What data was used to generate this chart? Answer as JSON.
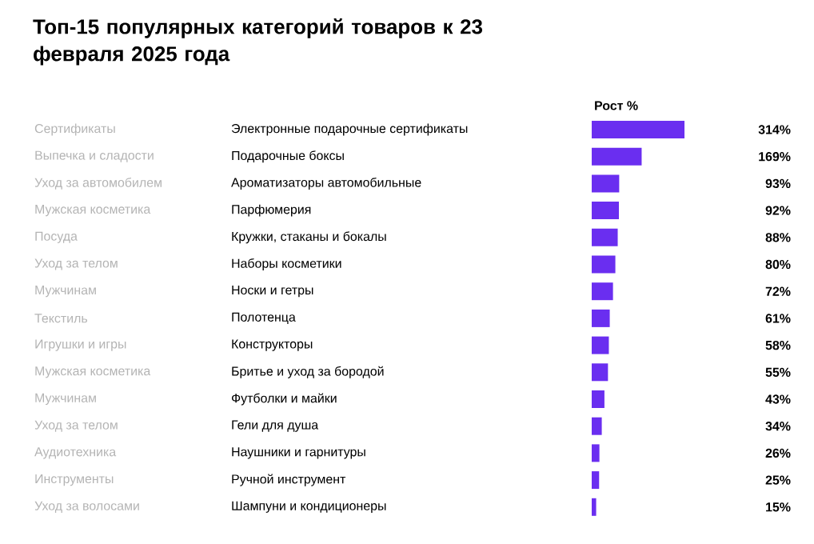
{
  "chart_data": {
    "type": "bar",
    "orientation": "horizontal",
    "title": "Топ-15 популярных категорий товаров к 23 февраля 2025 года",
    "xlabel": "Рост %",
    "categories": [
      "Электронные подарочные сертификаты",
      "Подарочные боксы",
      "Ароматизаторы автомобильные",
      "Парфюмерия",
      "Кружки, стаканы и бокалы",
      "Наборы косметики",
      "Носки и гетры",
      "Полотенца",
      "Конструкторы",
      "Бритье и уход за бородой",
      "Футболки и майки",
      "Гели для душа",
      "Наушники и гарнитуры",
      "Ручной инструмент",
      "Шампуни и кондиционеры"
    ],
    "annotations": [
      "Сертификаты",
      "Выпечка и сладости",
      "Уход за автомобилем",
      "Мужская косметика",
      "Посуда",
      "Уход за телом",
      "Мужчинам",
      "Текстиль",
      "Игрушки и игры",
      "Мужская косметика",
      "Мужчинам",
      "Уход за телом",
      "Аудиотехника",
      "Инструменты",
      "Уход за волосами"
    ],
    "values": [
      314,
      169,
      93,
      92,
      88,
      80,
      72,
      61,
      58,
      55,
      43,
      34,
      26,
      25,
      15
    ],
    "value_labels": [
      "314%",
      "169%",
      "93%",
      "92%",
      "88%",
      "80%",
      "72%",
      "61%",
      "58%",
      "55%",
      "43%",
      "34%",
      "26%",
      "25%",
      "15%"
    ],
    "color": "#6a2ef0"
  }
}
